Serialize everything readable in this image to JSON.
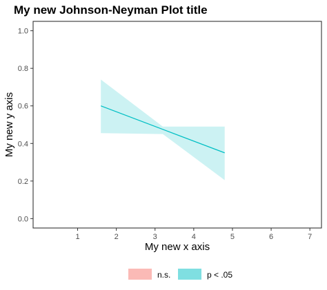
{
  "chart_data": {
    "type": "area",
    "title": "My new Johnson-Neyman Plot title",
    "xlabel": "My new x axis",
    "ylabel": "My new y axis",
    "xlim": [
      -0.15,
      7.3
    ],
    "ylim": [
      -0.05,
      1.05
    ],
    "x_ticks": [
      1,
      2,
      3,
      4,
      5,
      6,
      7
    ],
    "y_ticks": [
      0.0,
      0.2,
      0.4,
      0.6,
      0.8,
      1.0
    ],
    "y_tick_labels": [
      "0.0",
      "0.2",
      "0.4",
      "0.6",
      "0.8",
      "1.0"
    ],
    "grid": false,
    "legend_position": "bottom",
    "legend": [
      {
        "label": "n.s.",
        "color": "#F8766D"
      },
      {
        "label": "p < .05",
        "color": "#00BFC4"
      }
    ],
    "series": [
      {
        "name": "p < .05",
        "color": "#00BFC4",
        "x": [
          1.6,
          3.2,
          4.8
        ],
        "estimate": [
          0.6,
          0.475,
          0.35
        ],
        "upper": [
          0.74,
          0.49,
          0.49
        ],
        "lower": [
          0.455,
          0.45,
          0.205
        ]
      }
    ]
  }
}
